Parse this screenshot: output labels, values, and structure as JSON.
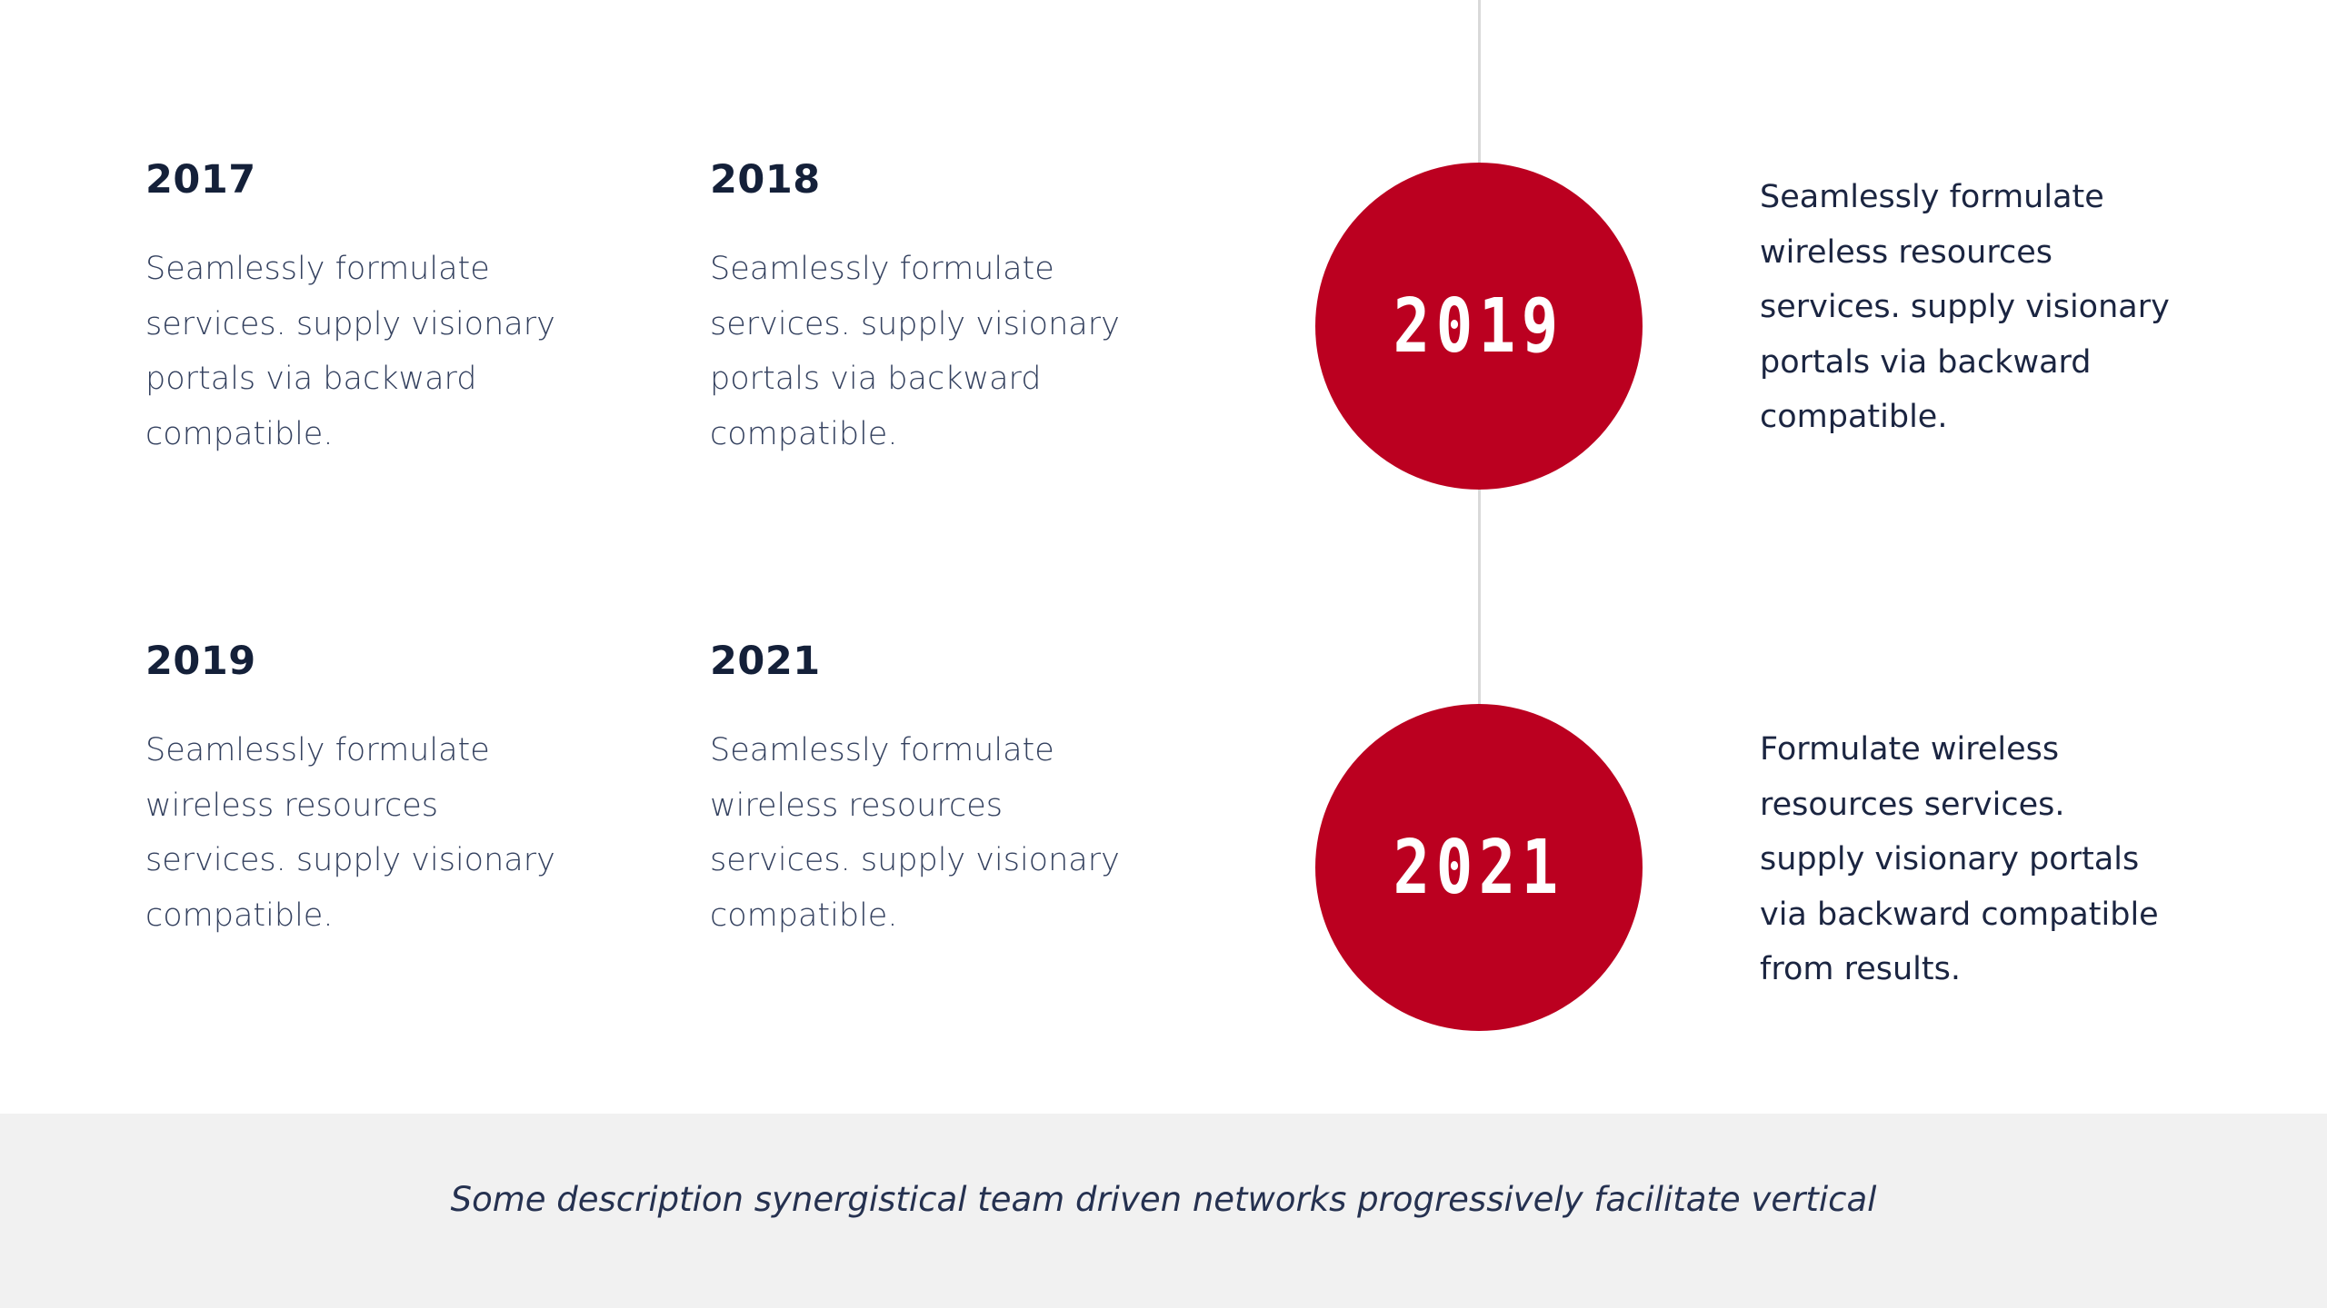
{
  "grid": [
    {
      "year": "2017",
      "text": "Seamlessly formulate\nservices. supply visionary\nportals via backward\ncompatible."
    },
    {
      "year": "2018",
      "text": "Seamlessly formulate\nservices. supply visionary\nportals via backward\ncompatible."
    },
    {
      "year": "2019",
      "text": "Seamlessly formulate\nwireless resources\nservices. supply visionary\ncompatible."
    },
    {
      "year": "2021",
      "text": "Seamlessly formulate\nwireless resources\nservices. supply visionary\ncompatible."
    }
  ],
  "timeline": {
    "milestones": [
      {
        "label": "2019",
        "text": "Seamlessly formulate\nwireless resources\nservices. supply visionary\nportals via backward\ncompatible."
      },
      {
        "label": "2021",
        "text": "Formulate wireless\nresources services.\nsupply visionary portals\nvia backward compatible\nfrom results."
      }
    ],
    "accent_color": "#bb0020",
    "line_color": "#d9d9d9"
  },
  "footer": {
    "description": "Some description synergistical team driven networks progressively facilitate vertical"
  }
}
